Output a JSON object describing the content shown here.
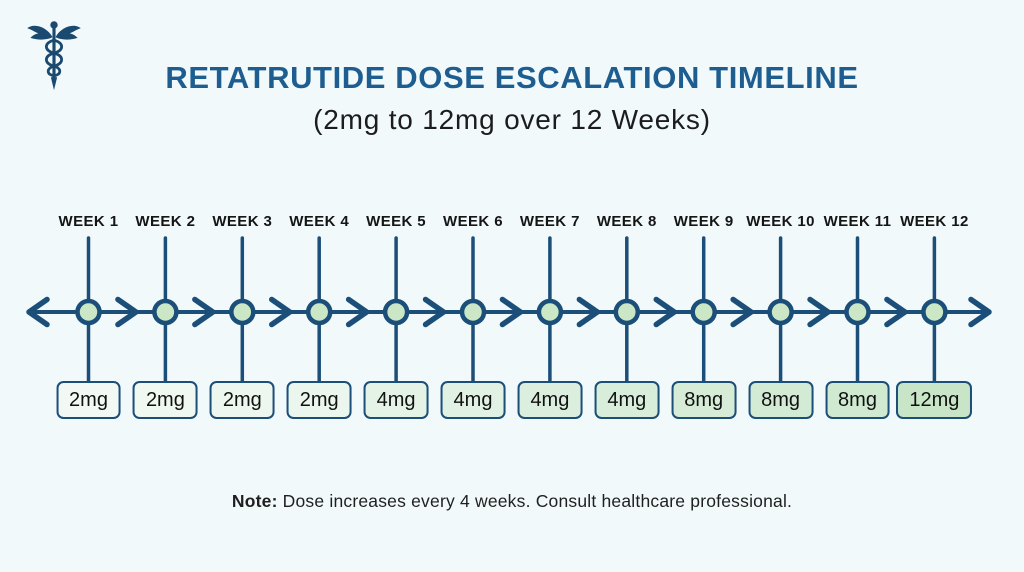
{
  "page": {
    "background": "#f1f9fb"
  },
  "header": {
    "icon": "caduceus-icon",
    "title": "RETATRUTIDE DOSE ESCALATION TIMELINE",
    "subtitle": "(2mg to 12mg over 12 Weeks)",
    "title_color": "#1e5d90"
  },
  "timeline": {
    "colors": {
      "line": "#1b4e78",
      "circle_fill": "#cbe7c6",
      "circle_border": "#1b4e78",
      "box_border": "#1b4e78",
      "label_text": "#151515",
      "dose_text": "#111111"
    },
    "weeks": [
      {
        "label": "WEEK 1",
        "dose": "2mg",
        "box_fill": "#f2f9f4"
      },
      {
        "label": "WEEK 2",
        "dose": "2mg",
        "box_fill": "#f0f8f2"
      },
      {
        "label": "WEEK 3",
        "dose": "2mg",
        "box_fill": "#edf7f0"
      },
      {
        "label": "WEEK 4",
        "dose": "2mg",
        "box_fill": "#ebf6ee"
      },
      {
        "label": "WEEK 5",
        "dose": "4mg",
        "box_fill": "#e5f3e7"
      },
      {
        "label": "WEEK 6",
        "dose": "4mg",
        "box_fill": "#e1f1e3"
      },
      {
        "label": "WEEK 7",
        "dose": "4mg",
        "box_fill": "#dcefdf"
      },
      {
        "label": "WEEK 8",
        "dose": "4mg",
        "box_fill": "#d8eedb"
      },
      {
        "label": "WEEK 9",
        "dose": "8mg",
        "box_fill": "#d6ecd7"
      },
      {
        "label": "WEEK 10",
        "dose": "8mg",
        "box_fill": "#d3ebd4"
      },
      {
        "label": "WEEK 11",
        "dose": "8mg",
        "box_fill": "#d0e9d1"
      },
      {
        "label": "WEEK 12",
        "dose": "12mg",
        "box_fill": "#c8e6c7"
      }
    ]
  },
  "note": {
    "prefix": "Note:",
    "text": " Dose increases every 4 weeks. Consult healthcare professional."
  }
}
